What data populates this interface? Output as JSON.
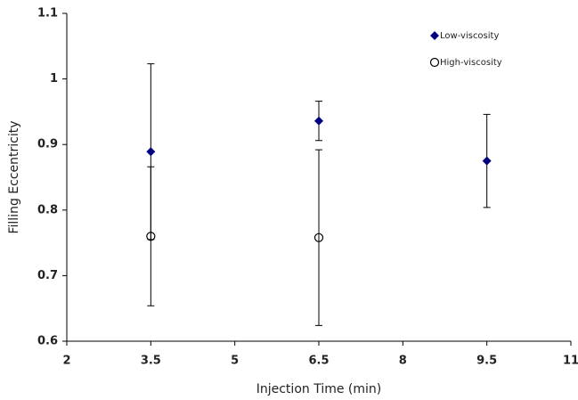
{
  "chart_data": {
    "type": "scatter",
    "x_label": "Injection Time (min)",
    "y_label": "Filling Eccentricity",
    "xlim": [
      2,
      11
    ],
    "xticks": [
      2,
      3.5,
      5,
      6.5,
      8,
      9.5,
      11
    ],
    "ylim": [
      0.6,
      1.1
    ],
    "yticks": [
      0.6,
      0.7,
      0.8,
      0.9,
      1,
      1.1
    ],
    "grid": false,
    "legend": "top-right",
    "series": [
      {
        "name": "Low-viscosity",
        "color": "#00007f",
        "marker": "diamond",
        "x": [
          3.5,
          6.5,
          9.5
        ],
        "values": [
          0.889,
          0.936,
          0.875
        ],
        "errors": [
          0.134,
          0.03,
          0.071
        ]
      },
      {
        "name": "High-viscosity",
        "color": "#000000",
        "marker": "circle-open",
        "x": [
          3.5,
          6.5
        ],
        "values": [
          0.76,
          0.758
        ],
        "errors": [
          0.106,
          0.134
        ]
      }
    ]
  }
}
